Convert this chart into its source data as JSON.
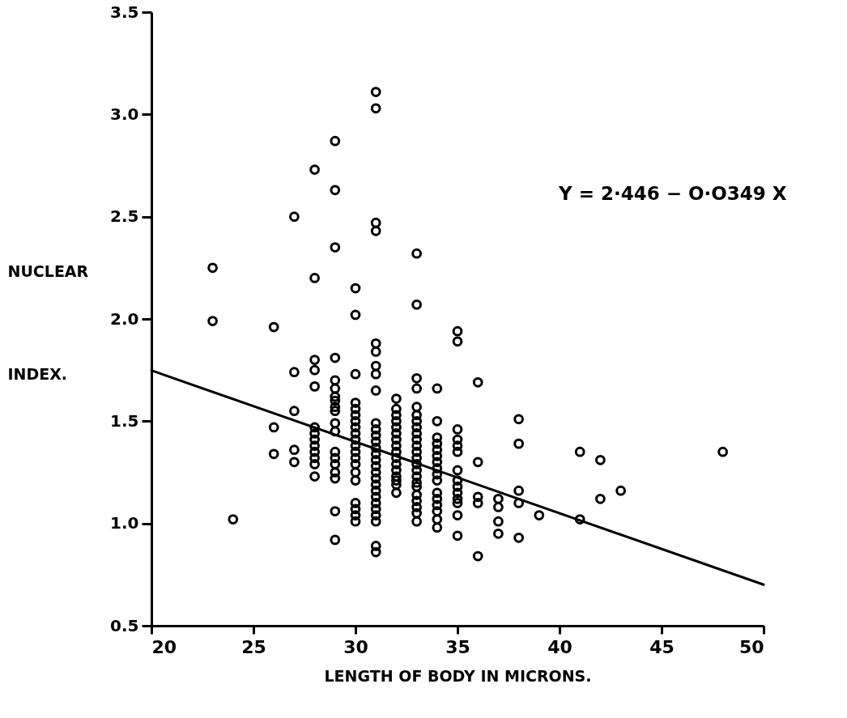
{
  "chart_data": {
    "type": "scatter",
    "xlabel": "LENGTH OF BODY IN MICRONS.",
    "ylabel": "NUCLEAR INDEX.",
    "annotations": [
      "Y = 2·446 − O·O349 X"
    ],
    "xlim": [
      20,
      50
    ],
    "xticks": [
      20,
      25,
      30,
      35,
      40,
      45,
      50
    ],
    "ylim": [
      0.5,
      3.5
    ],
    "yticks": [
      0.5,
      {
        "value": 1,
        "label": "1.0"
      },
      1.5,
      {
        "value": 2,
        "label": "2.0"
      },
      2.5,
      {
        "value": 3,
        "label": "3.0"
      },
      3.5
    ],
    "grid": false,
    "series": [
      {
        "color": "#000000",
        "marker": "circle",
        "x": [
          23,
          23,
          24,
          26,
          26,
          26,
          27,
          27,
          27,
          27,
          27,
          28,
          28,
          28,
          28,
          28,
          28,
          28,
          28,
          28,
          28,
          28,
          28,
          28,
          29,
          29,
          29,
          29,
          29,
          29,
          29,
          29,
          29,
          29,
          29,
          29,
          29,
          29,
          29,
          29,
          29,
          29,
          29,
          30,
          30,
          30,
          30,
          30,
          30,
          30,
          30,
          30,
          30,
          30,
          30,
          30,
          30,
          30,
          30,
          30,
          30,
          30,
          30,
          31,
          31,
          31,
          31,
          31,
          31,
          31,
          31,
          31,
          31,
          31,
          31,
          31,
          31,
          31,
          31,
          31,
          31,
          31,
          31,
          31,
          31,
          31,
          31,
          31,
          31,
          31,
          31,
          32,
          32,
          32,
          32,
          32,
          32,
          32,
          32,
          32,
          32,
          32,
          32,
          32,
          32,
          32,
          32,
          33,
          33,
          33,
          33,
          33,
          33,
          33,
          33,
          33,
          33,
          33,
          33,
          33,
          33,
          33,
          33,
          33,
          33,
          33,
          33,
          33,
          33,
          33,
          34,
          34,
          34,
          34,
          34,
          34,
          34,
          34,
          34,
          34,
          34,
          34,
          34,
          34,
          34,
          34,
          35,
          35,
          35,
          35,
          35,
          35,
          35,
          35,
          35,
          35,
          35,
          35,
          35,
          35,
          36,
          36,
          36,
          36,
          36,
          37,
          37,
          37,
          37,
          38,
          38,
          38,
          38,
          38,
          39,
          41,
          41,
          42,
          42,
          43,
          48
        ],
        "values": [
          2.25,
          1.99,
          1.02,
          1.96,
          1.47,
          1.34,
          2.5,
          1.74,
          1.55,
          1.36,
          1.3,
          2.73,
          2.2,
          1.8,
          1.75,
          1.67,
          1.47,
          1.44,
          1.41,
          1.38,
          1.35,
          1.32,
          1.29,
          1.23,
          2.87,
          2.63,
          2.35,
          1.81,
          1.7,
          1.66,
          1.62,
          1.6,
          1.57,
          1.55,
          1.49,
          1.45,
          1.35,
          1.32,
          1.29,
          1.25,
          1.22,
          1.06,
          0.92,
          2.15,
          2.02,
          1.73,
          1.59,
          1.56,
          1.53,
          1.5,
          1.47,
          1.44,
          1.41,
          1.38,
          1.35,
          1.32,
          1.29,
          1.25,
          1.21,
          1.1,
          1.07,
          1.04,
          1.01,
          3.11,
          3.03,
          2.47,
          2.43,
          1.88,
          1.84,
          1.77,
          1.73,
          1.65,
          1.49,
          1.46,
          1.43,
          1.4,
          1.37,
          1.34,
          1.31,
          1.28,
          1.25,
          1.22,
          1.19,
          1.16,
          1.13,
          1.1,
          1.07,
          1.04,
          1.01,
          0.89,
          0.86,
          1.61,
          1.56,
          1.53,
          1.5,
          1.47,
          1.44,
          1.41,
          1.38,
          1.35,
          1.32,
          1.29,
          1.26,
          1.23,
          1.21,
          1.19,
          1.15,
          2.32,
          2.07,
          1.71,
          1.66,
          1.57,
          1.53,
          1.5,
          1.47,
          1.44,
          1.41,
          1.38,
          1.35,
          1.32,
          1.29,
          1.26,
          1.23,
          1.2,
          1.18,
          1.14,
          1.11,
          1.08,
          1.05,
          1.01,
          1.66,
          1.5,
          1.42,
          1.39,
          1.36,
          1.33,
          1.3,
          1.27,
          1.24,
          1.21,
          1.15,
          1.12,
          1.09,
          1.06,
          1.02,
          0.98,
          1.94,
          1.89,
          1.46,
          1.41,
          1.38,
          1.35,
          1.26,
          1.21,
          1.18,
          1.15,
          1.12,
          1.1,
          1.04,
          0.94,
          1.69,
          1.3,
          1.13,
          1.1,
          0.84,
          1.12,
          1.08,
          1.01,
          0.95,
          1.51,
          1.39,
          1.16,
          1.1,
          0.93,
          1.04,
          1.35,
          1.02,
          1.31,
          1.12,
          1.16,
          1.35
        ]
      },
      {
        "type": "line",
        "color": "#000000",
        "x": [
          20,
          50
        ],
        "values": [
          1.748,
          0.701
        ]
      }
    ]
  }
}
